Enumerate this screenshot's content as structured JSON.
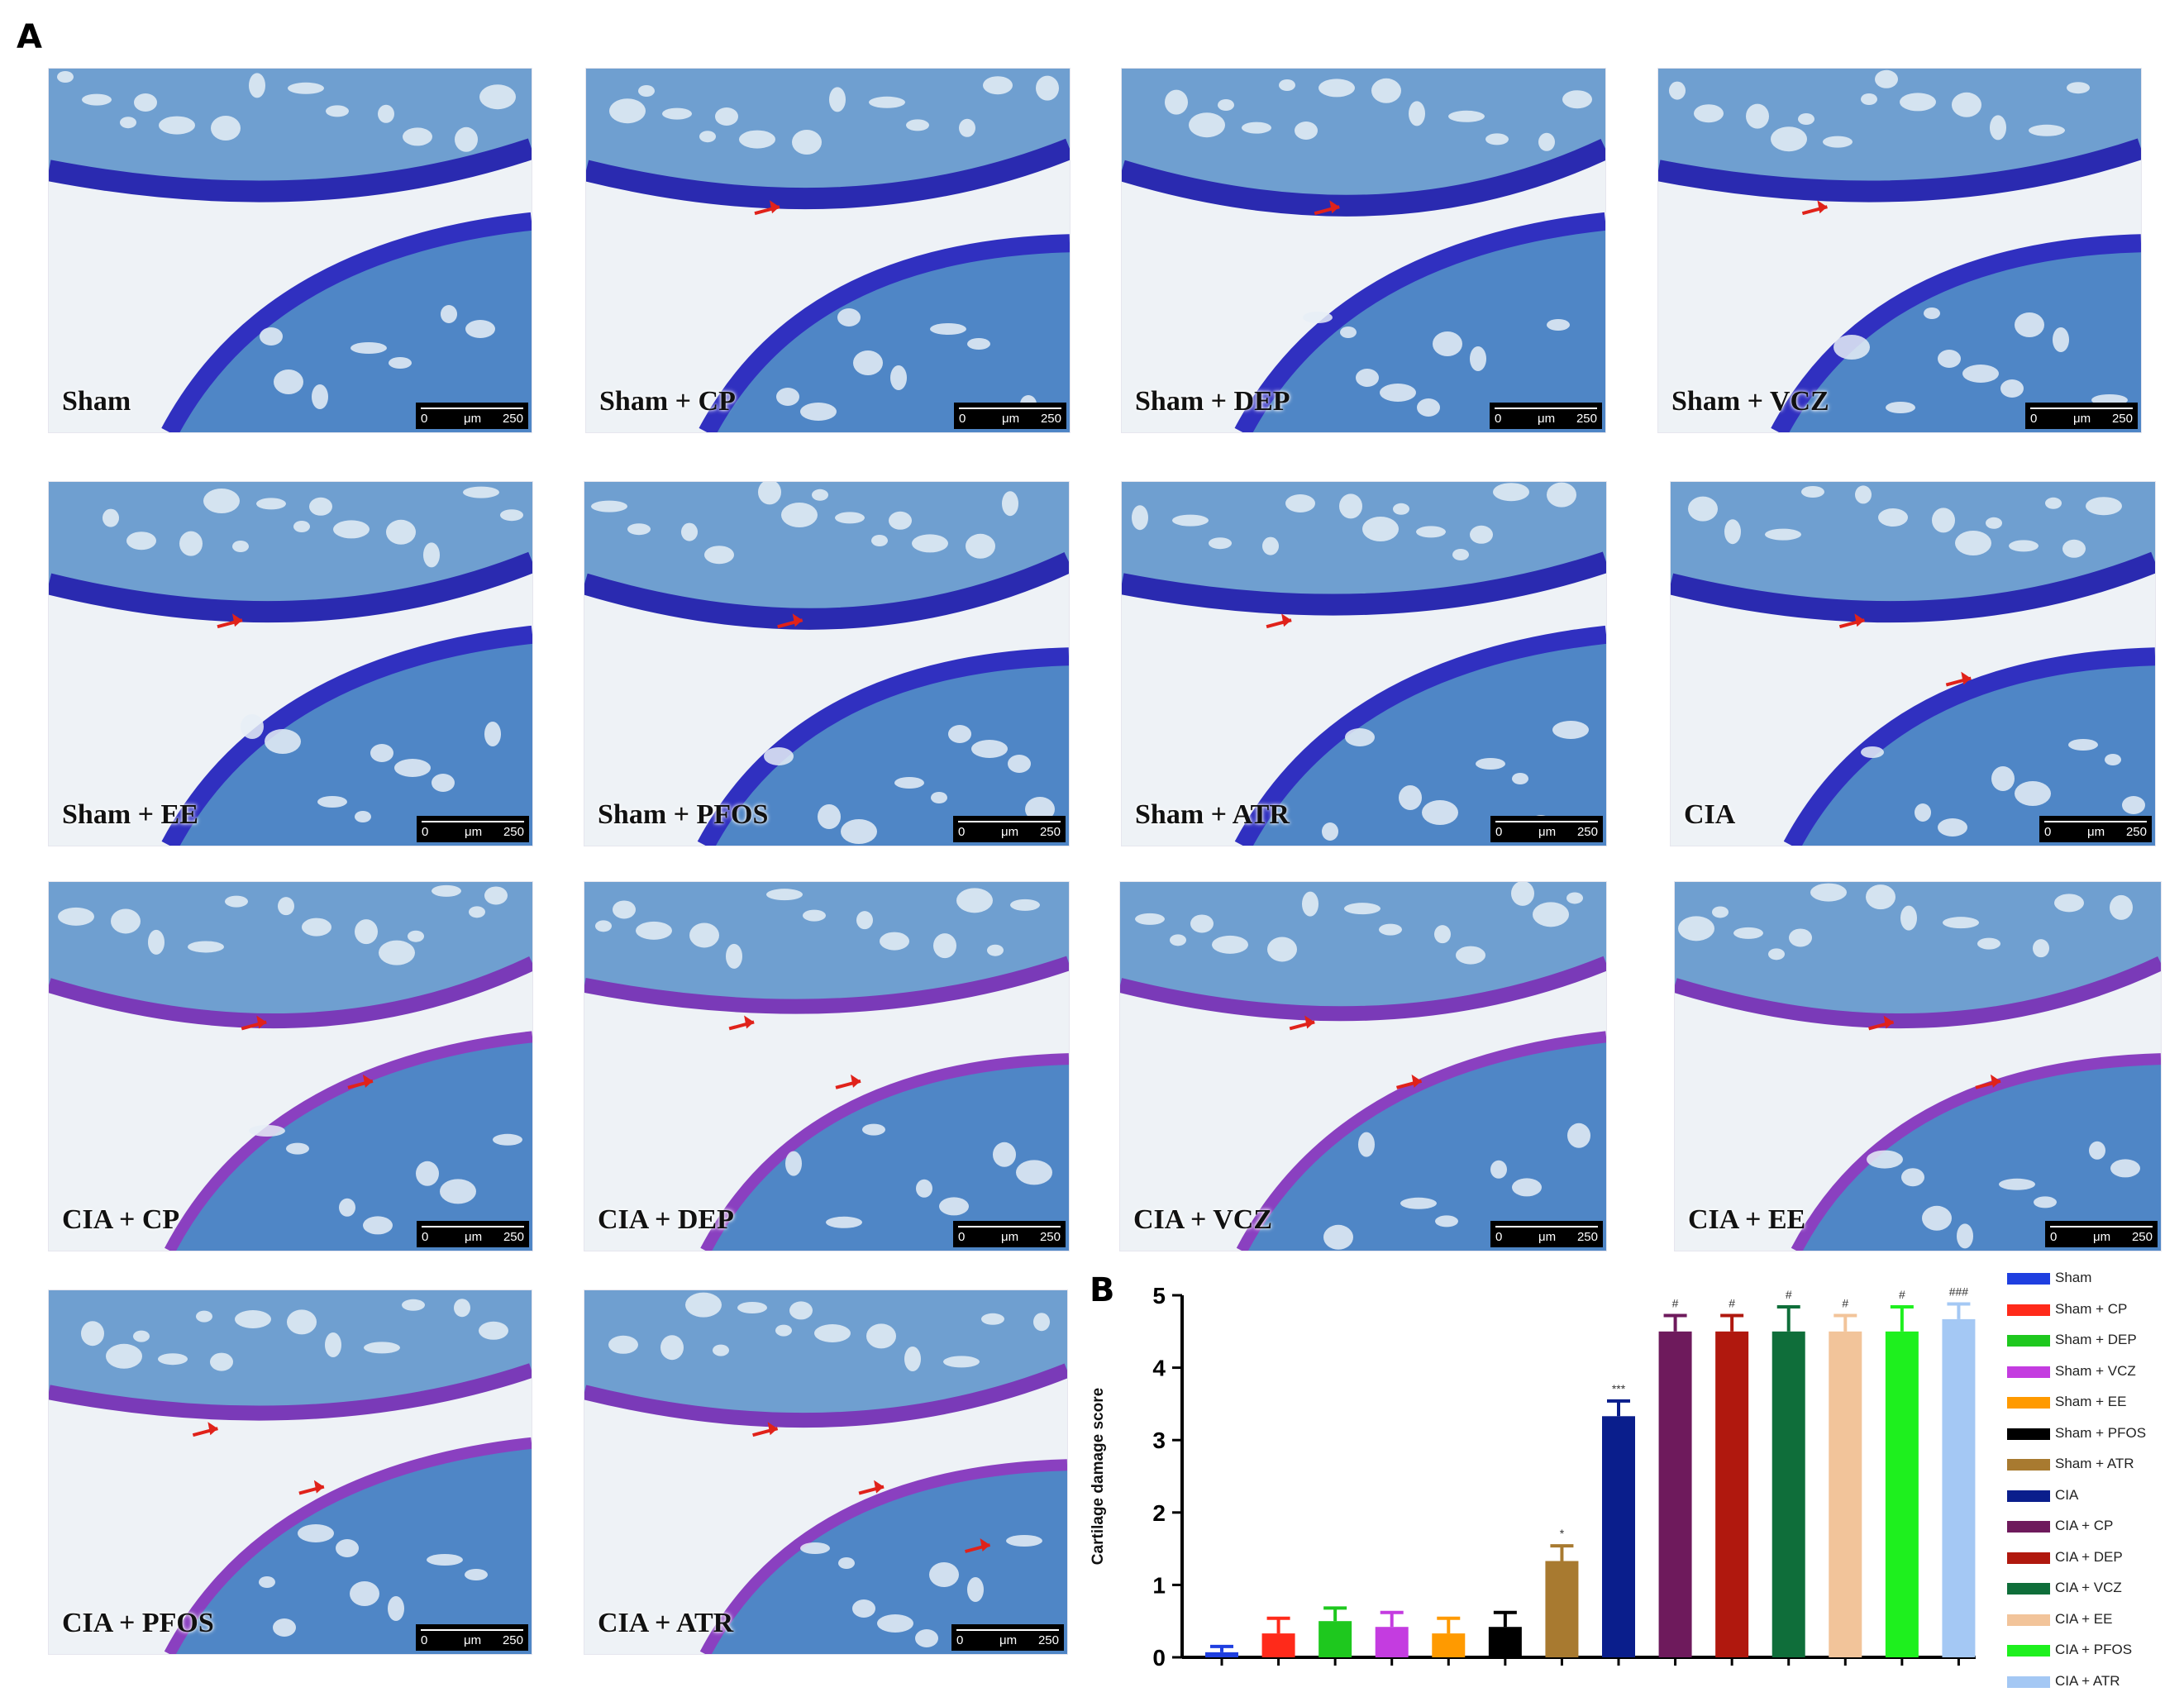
{
  "panels": {
    "a_label": "A",
    "b_label": "B"
  },
  "histology": {
    "tiles": [
      {
        "label": "Sham",
        "arrows": 0
      },
      {
        "label": "Sham + CP",
        "arrows": 1
      },
      {
        "label": "Sham + DEP",
        "arrows": 1
      },
      {
        "label": "Sham + VCZ",
        "arrows": 1
      },
      {
        "label": "Sham + EE",
        "arrows": 1
      },
      {
        "label": "Sham + PFOS",
        "arrows": 1
      },
      {
        "label": "Sham + ATR",
        "arrows": 1
      },
      {
        "label": "CIA",
        "arrows": 2
      },
      {
        "label": "CIA + CP",
        "arrows": 2
      },
      {
        "label": "CIA + DEP",
        "arrows": 2
      },
      {
        "label": "CIA + VCZ",
        "arrows": 2
      },
      {
        "label": "CIA + EE",
        "arrows": 2
      },
      {
        "label": "CIA + PFOS",
        "arrows": 2
      },
      {
        "label": "CIA + ATR",
        "arrows": 3
      }
    ],
    "scale_bar": {
      "start": "0",
      "unit": "μm",
      "end": "250"
    }
  },
  "chart_data": {
    "type": "bar",
    "ylabel": "Cartilage damage score",
    "ylim": [
      0,
      5
    ],
    "yticks": [
      "0",
      "1",
      "2",
      "3",
      "4",
      "5"
    ],
    "grid": false,
    "legend_position": "right",
    "categories": [
      "Sham",
      "Sham + CP",
      "Sham + DEP",
      "Sham + VCZ",
      "Sham + EE",
      "Sham + PFOS",
      "Sham + ATR",
      "CIA",
      "CIA + CP",
      "CIA + DEP",
      "CIA + VCZ",
      "CIA + EE",
      "CIA + PFOS",
      "CIA + ATR"
    ],
    "values": [
      0.07,
      0.33,
      0.5,
      0.42,
      0.33,
      0.42,
      1.33,
      3.33,
      4.5,
      4.5,
      4.5,
      4.5,
      4.5,
      4.67
    ],
    "errors": [
      0.08,
      0.21,
      0.18,
      0.2,
      0.21,
      0.2,
      0.21,
      0.21,
      0.22,
      0.22,
      0.34,
      0.22,
      0.34,
      0.21
    ],
    "annotations": [
      "",
      "",
      "",
      "",
      "",
      "",
      "*",
      "***",
      "#",
      "#",
      "#",
      "#",
      "#",
      "###"
    ],
    "colors": [
      "#1f3fe0",
      "#ff2a1a",
      "#1ec81e",
      "#c43ce0",
      "#ff9a00",
      "#000000",
      "#a87a30",
      "#0a1e8c",
      "#6e1a5c",
      "#b0180e",
      "#0f6e3a",
      "#f2c49a",
      "#1ef01e",
      "#a4c8f4"
    ]
  }
}
